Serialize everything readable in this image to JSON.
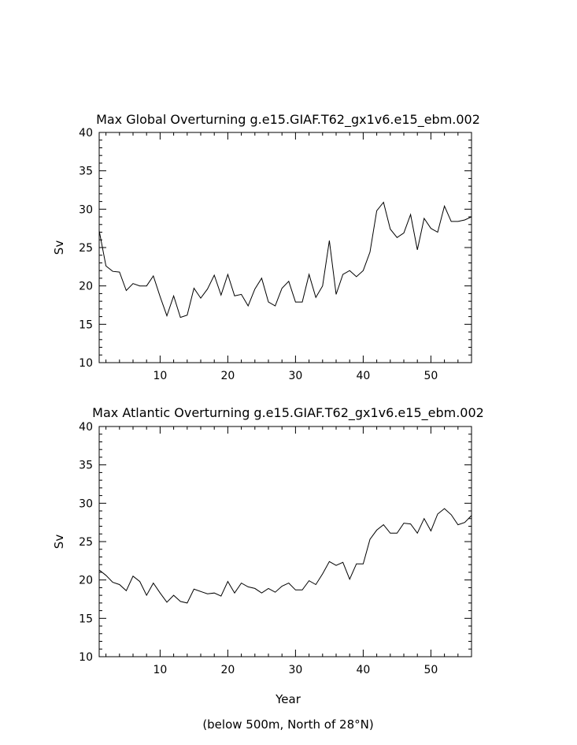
{
  "chart_data": [
    {
      "type": "line",
      "title": "Max Global Overturning g.e15.GIAF.T62_gx1v6.e15_ebm.002",
      "xlabel": "",
      "ylabel": "Sv",
      "xlim": [
        1,
        56
      ],
      "ylim": [
        10,
        40
      ],
      "xticks": [
        10,
        20,
        30,
        40,
        50
      ],
      "yticks": [
        10,
        15,
        20,
        25,
        30,
        35,
        40
      ],
      "grid": false,
      "series": [
        {
          "x": [
            1,
            2,
            3,
            4,
            5,
            6,
            7,
            8,
            9,
            10,
            11,
            12,
            13,
            14,
            15,
            16,
            17,
            18,
            19,
            20,
            21,
            22,
            23,
            24,
            25,
            26,
            27,
            28,
            29,
            30,
            31,
            32,
            33,
            34,
            35,
            36,
            37,
            38,
            39,
            40,
            41,
            42,
            43,
            44,
            45,
            46,
            47,
            48,
            49,
            50,
            51,
            52,
            53,
            54,
            55,
            56
          ],
          "values": [
            27.2,
            22.6,
            21.9,
            21.8,
            19.4,
            20.3,
            20.0,
            20.0,
            21.3,
            18.6,
            16.1,
            18.7,
            15.9,
            16.2,
            19.7,
            18.4,
            19.6,
            21.4,
            18.8,
            21.5,
            18.7,
            18.9,
            17.4,
            19.6,
            21.0,
            17.9,
            17.4,
            19.7,
            20.6,
            17.9,
            17.9,
            21.5,
            18.5,
            20.0,
            25.9,
            18.9,
            21.5,
            22.0,
            21.2,
            22.0,
            24.4,
            29.8,
            30.9,
            27.4,
            26.3,
            26.9,
            29.3,
            24.7,
            28.8,
            27.5,
            27.0,
            30.4,
            28.4,
            28.4,
            28.6,
            29.0
          ]
        }
      ]
    },
    {
      "type": "line",
      "title": "Max Atlantic Overturning g.e15.GIAF.T62_gx1v6.e15_ebm.002",
      "xlabel": "Year",
      "ylabel": "Sv",
      "xlim": [
        1,
        56
      ],
      "ylim": [
        10,
        40
      ],
      "xticks": [
        10,
        20,
        30,
        40,
        50
      ],
      "yticks": [
        10,
        15,
        20,
        25,
        30,
        35,
        40
      ],
      "grid": false,
      "series": [
        {
          "x": [
            1,
            2,
            3,
            4,
            5,
            6,
            7,
            8,
            9,
            10,
            11,
            12,
            13,
            14,
            15,
            16,
            17,
            18,
            19,
            20,
            21,
            22,
            23,
            24,
            25,
            26,
            27,
            28,
            29,
            30,
            31,
            32,
            33,
            34,
            35,
            36,
            37,
            38,
            39,
            40,
            41,
            42,
            43,
            44,
            45,
            46,
            47,
            48,
            49,
            50,
            51,
            52,
            53,
            54,
            55,
            56
          ],
          "values": [
            21.3,
            20.6,
            19.7,
            19.4,
            18.6,
            20.5,
            19.8,
            18.0,
            19.6,
            18.3,
            17.1,
            18.0,
            17.2,
            17.0,
            18.8,
            18.5,
            18.2,
            18.3,
            17.9,
            19.8,
            18.3,
            19.6,
            19.1,
            18.9,
            18.3,
            18.9,
            18.4,
            19.2,
            19.6,
            18.7,
            18.7,
            19.9,
            19.4,
            20.8,
            22.4,
            21.9,
            22.3,
            20.1,
            22.1,
            22.1,
            25.3,
            26.5,
            27.2,
            26.1,
            26.1,
            27.4,
            27.3,
            26.1,
            28.0,
            26.4,
            28.6,
            29.3,
            28.5,
            27.2,
            27.5,
            28.4
          ]
        }
      ]
    }
  ],
  "footnote": "(below 500m, North of 28°N)"
}
